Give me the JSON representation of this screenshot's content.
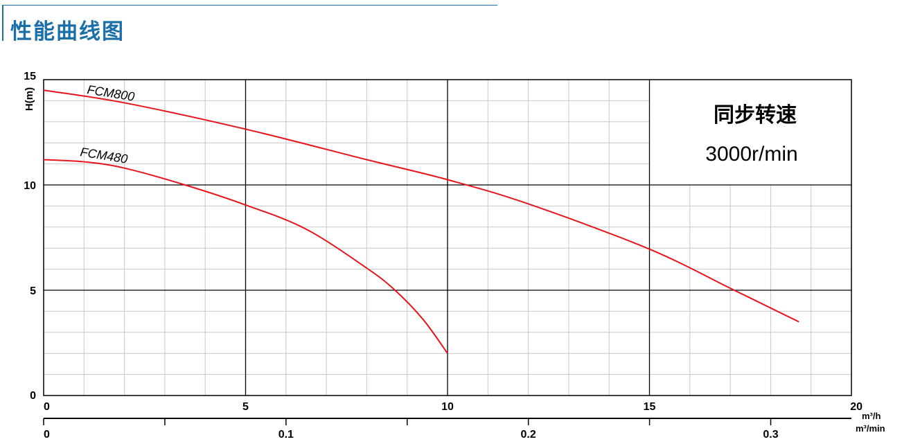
{
  "header": {
    "title": "性能曲线图"
  },
  "chart_data": {
    "type": "line",
    "title": "",
    "xlabel": "m³/h",
    "x2label": "m³/min",
    "ylabel": "H(m)",
    "xlim": [
      0,
      20
    ],
    "ylim": [
      0,
      15
    ],
    "x_ticks": [
      0,
      5,
      10,
      15,
      20
    ],
    "y_ticks": [
      0,
      5,
      10,
      15
    ],
    "x2_ticks": [
      "0",
      "0.1",
      "0.2",
      "0.3"
    ],
    "x2_tick_values": [
      0,
      0.1,
      0.2,
      0.3
    ],
    "x2_lim": [
      0,
      0.3333
    ],
    "grid": true,
    "annotation": {
      "line1": "同步转速",
      "line2": "3000r/min"
    },
    "series": [
      {
        "name": "FCM800",
        "color": "#e8141b",
        "points": [
          [
            0,
            14.5
          ],
          [
            2,
            13.9
          ],
          [
            5,
            12.65
          ],
          [
            8,
            11.2
          ],
          [
            10,
            10.25
          ],
          [
            12,
            9.1
          ],
          [
            15,
            6.95
          ],
          [
            17.1,
            5.0
          ],
          [
            18.7,
            3.5
          ]
        ]
      },
      {
        "name": "FCM480",
        "color": "#e8141b",
        "points": [
          [
            0,
            11.2
          ],
          [
            1,
            11.1
          ],
          [
            2,
            10.8
          ],
          [
            3.5,
            10.0
          ],
          [
            5,
            9.05
          ],
          [
            6.5,
            7.9
          ],
          [
            8,
            6.05
          ],
          [
            8.7,
            5.0
          ],
          [
            9.4,
            3.6
          ],
          [
            10,
            2.0
          ]
        ]
      }
    ]
  }
}
